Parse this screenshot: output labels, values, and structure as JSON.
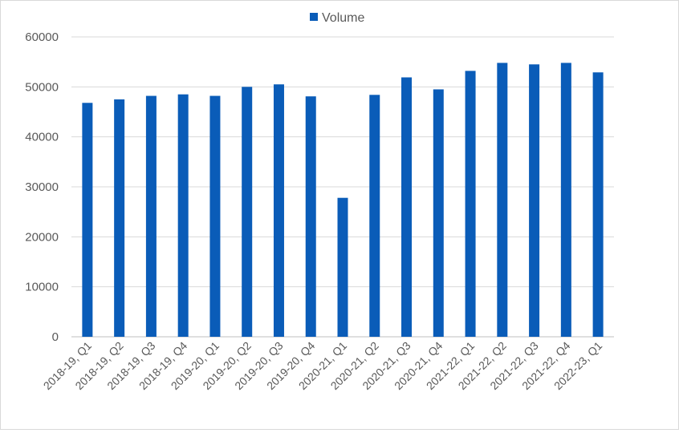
{
  "chart_data": {
    "type": "bar",
    "title": "",
    "xlabel": "",
    "ylabel": "",
    "categories": [
      "2018-19, Q1",
      "2018-19, Q2",
      "2018-19, Q3",
      "2018-19, Q4",
      "2019-20, Q1",
      "2019-20, Q2",
      "2019-20, Q3",
      "2019-20, Q4",
      "2020-21, Q1",
      "2020-21, Q2",
      "2020-21, Q3",
      "2020-21, Q4",
      "2021-22, Q1",
      "2021-22, Q2",
      "2021-22, Q3",
      "2021-22, Q4",
      "2022-23, Q1"
    ],
    "series": [
      {
        "name": "Volume",
        "color": "#0a5cb8",
        "values": [
          46800,
          47500,
          48200,
          48500,
          48200,
          50000,
          50500,
          48100,
          27800,
          48400,
          51900,
          49500,
          53200,
          54800,
          54500,
          54800,
          52900
        ]
      }
    ],
    "ylim": [
      0,
      60000
    ],
    "yticks": [
      0,
      10000,
      20000,
      30000,
      40000,
      50000,
      60000
    ],
    "grid": true,
    "legend": "top-center"
  }
}
